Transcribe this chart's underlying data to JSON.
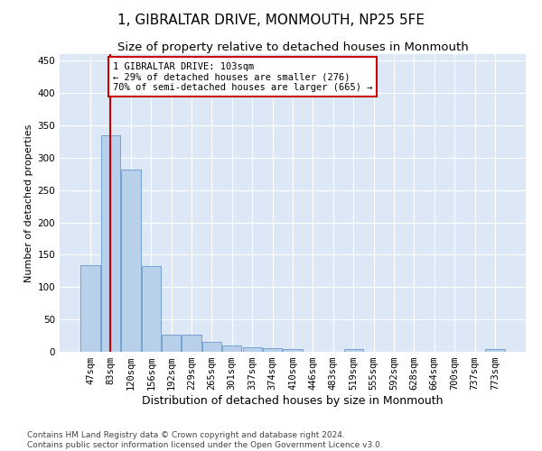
{
  "title": "1, GIBRALTAR DRIVE, MONMOUTH, NP25 5FE",
  "subtitle": "Size of property relative to detached houses in Monmouth",
  "xlabel": "Distribution of detached houses by size in Monmouth",
  "ylabel": "Number of detached properties",
  "categories": [
    "47sqm",
    "83sqm",
    "120sqm",
    "156sqm",
    "192sqm",
    "229sqm",
    "265sqm",
    "301sqm",
    "337sqm",
    "374sqm",
    "410sqm",
    "446sqm",
    "483sqm",
    "519sqm",
    "555sqm",
    "592sqm",
    "628sqm",
    "664sqm",
    "700sqm",
    "737sqm",
    "773sqm"
  ],
  "values": [
    134,
    335,
    281,
    133,
    26,
    26,
    15,
    10,
    7,
    5,
    4,
    0,
    0,
    4,
    0,
    0,
    0,
    0,
    0,
    0,
    4
  ],
  "bar_color": "#b8d0ea",
  "bar_edge_color": "#6699cc",
  "vline_x": 1.0,
  "vline_color": "#cc0000",
  "annotation_text": "1 GIBRALTAR DRIVE: 103sqm\n← 29% of detached houses are smaller (276)\n70% of semi-detached houses are larger (665) →",
  "annotation_box_color": "#ffffff",
  "annotation_box_edge": "#cc0000",
  "ylim": [
    0,
    460
  ],
  "yticks": [
    0,
    50,
    100,
    150,
    200,
    250,
    300,
    350,
    400,
    450
  ],
  "footer": "Contains HM Land Registry data © Crown copyright and database right 2024.\nContains public sector information licensed under the Open Government Licence v3.0.",
  "bg_color": "#dce8f5",
  "title_fontsize": 11,
  "subtitle_fontsize": 9.5,
  "xlabel_fontsize": 9,
  "ylabel_fontsize": 8,
  "tick_fontsize": 7.5,
  "footer_fontsize": 6.5,
  "annotation_fontsize": 7.5
}
